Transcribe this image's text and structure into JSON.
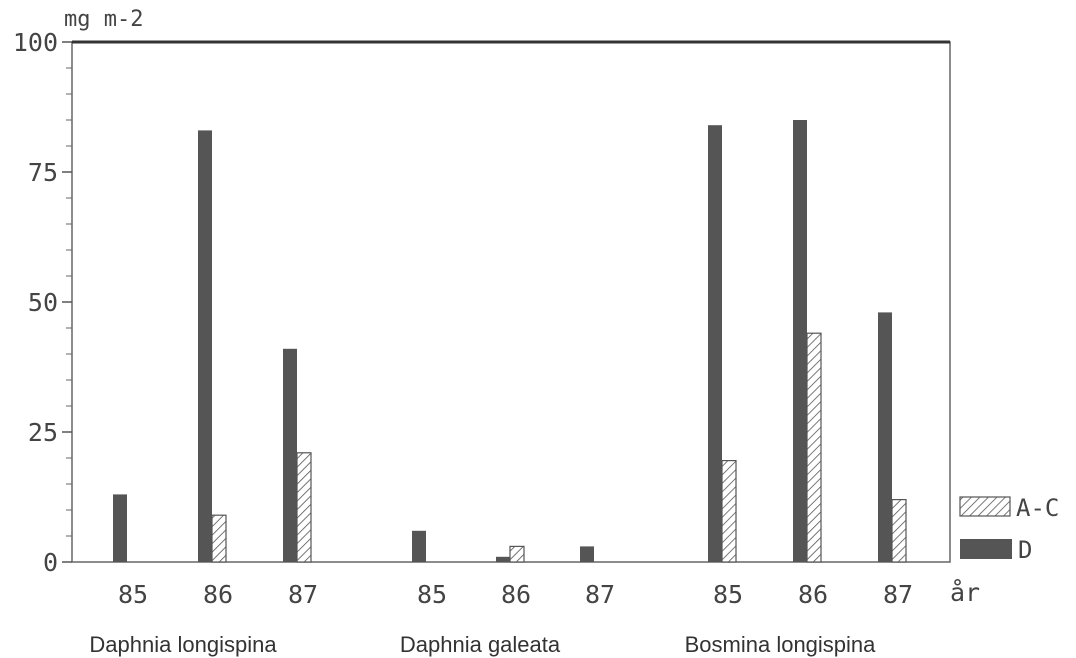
{
  "chart_data": {
    "type": "bar",
    "ylabel": "mg m-2",
    "xlabel": "år",
    "ylim": [
      0,
      100
    ],
    "yticks": [
      0,
      25,
      50,
      75,
      100
    ],
    "groups": [
      {
        "name": "Daphnia longispina",
        "years": [
          "85",
          "86",
          "87"
        ],
        "series": [
          {
            "name": "D",
            "values": [
              13,
              83,
              41
            ]
          },
          {
            "name": "A-C",
            "values": [
              0,
              9,
              21
            ]
          }
        ]
      },
      {
        "name": "Daphnia galeata",
        "years": [
          "85",
          "86",
          "87"
        ],
        "series": [
          {
            "name": "D",
            "values": [
              6,
              1,
              3
            ]
          },
          {
            "name": "A-C",
            "values": [
              0,
              3,
              0
            ]
          }
        ]
      },
      {
        "name": "Bosmina longispina",
        "years": [
          "85",
          "86",
          "87"
        ],
        "series": [
          {
            "name": "D",
            "values": [
              84,
              85,
              48
            ]
          },
          {
            "name": "A-C",
            "values": [
              19.5,
              44,
              12
            ]
          }
        ]
      }
    ],
    "legend": {
      "placement": "right",
      "entries": [
        {
          "label": "A-C",
          "pattern": "hatched"
        },
        {
          "label": "D",
          "pattern": "solid"
        }
      ]
    },
    "colors": {
      "solid": "#555555",
      "hatch": "#555555",
      "frame": "#666666"
    }
  }
}
